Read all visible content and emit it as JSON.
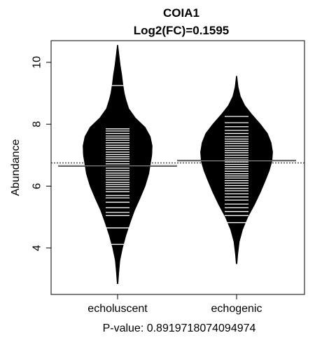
{
  "chart_data": {
    "type": "beanplot",
    "title": "COIA1",
    "subtitle": "Log2(FC)=0.1595",
    "ylabel": "Abundance",
    "xlabel": "P-value: 0.8919718074094974",
    "categories": [
      "echoluscent",
      "echogenic"
    ],
    "ylim": [
      2.5,
      10.7
    ],
    "yticks": [
      4,
      6,
      8,
      10
    ],
    "overall_mean": 6.75,
    "grid": false,
    "legend": "none",
    "series": [
      {
        "group_mean": 6.65,
        "density": [
          [
            2.85,
            0.01
          ],
          [
            3.2,
            0.03
          ],
          [
            3.6,
            0.06
          ],
          [
            4.0,
            0.13
          ],
          [
            4.4,
            0.22
          ],
          [
            4.8,
            0.33
          ],
          [
            5.2,
            0.45
          ],
          [
            5.6,
            0.6
          ],
          [
            6.0,
            0.74
          ],
          [
            6.4,
            0.84
          ],
          [
            6.7,
            0.88
          ],
          [
            7.0,
            0.92
          ],
          [
            7.3,
            0.93
          ],
          [
            7.6,
            0.88
          ],
          [
            7.9,
            0.74
          ],
          [
            8.2,
            0.48
          ],
          [
            8.5,
            0.3
          ],
          [
            8.8,
            0.22
          ],
          [
            9.0,
            0.18
          ],
          [
            9.3,
            0.14
          ],
          [
            9.6,
            0.11
          ],
          [
            9.9,
            0.07
          ],
          [
            10.2,
            0.04
          ],
          [
            10.55,
            0.005
          ]
        ],
        "observations": [
          4.12,
          4.65,
          5.05,
          5.15,
          5.3,
          5.48,
          5.62,
          5.7,
          5.82,
          5.9,
          5.98,
          6.05,
          6.12,
          6.2,
          6.28,
          6.35,
          6.42,
          6.5,
          6.58,
          6.65,
          6.72,
          6.8,
          6.88,
          6.95,
          7.02,
          7.1,
          7.18,
          7.25,
          7.32,
          7.4,
          7.48,
          7.55,
          7.62,
          7.7,
          7.78,
          7.85,
          9.25
        ]
      },
      {
        "group_mean": 6.82,
        "density": [
          [
            3.5,
            0.01
          ],
          [
            3.8,
            0.03
          ],
          [
            4.2,
            0.07
          ],
          [
            4.6,
            0.16
          ],
          [
            5.0,
            0.3
          ],
          [
            5.4,
            0.48
          ],
          [
            5.8,
            0.64
          ],
          [
            6.2,
            0.78
          ],
          [
            6.5,
            0.88
          ],
          [
            6.8,
            0.95
          ],
          [
            7.1,
            0.97
          ],
          [
            7.4,
            0.93
          ],
          [
            7.7,
            0.83
          ],
          [
            8.0,
            0.64
          ],
          [
            8.3,
            0.42
          ],
          [
            8.6,
            0.22
          ],
          [
            8.9,
            0.1
          ],
          [
            9.2,
            0.04
          ],
          [
            9.55,
            0.005
          ]
        ],
        "observations": [
          4.82,
          5.05,
          5.18,
          5.3,
          5.42,
          5.55,
          5.65,
          5.75,
          5.85,
          5.93,
          6.02,
          6.1,
          6.18,
          6.26,
          6.33,
          6.4,
          6.48,
          6.56,
          6.63,
          6.7,
          6.78,
          6.85,
          6.92,
          7.0,
          7.08,
          7.15,
          7.22,
          7.3,
          7.38,
          7.45,
          7.52,
          7.6,
          7.7,
          7.8,
          7.92,
          8.05,
          8.25
        ]
      }
    ]
  }
}
